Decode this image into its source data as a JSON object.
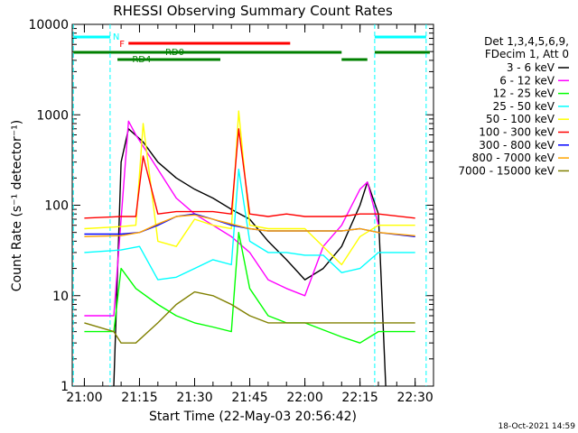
{
  "chart_data": {
    "type": "line",
    "title": "RHESSI Observing Summary Count Rates",
    "xlabel": "Start Time (22-May-03 20:56:42)",
    "ylabel": "Count Rate (s⁻¹ detector⁻¹)",
    "y_scale": "log",
    "ylim": [
      1,
      10000
    ],
    "xlim_minutes_label": "20:56:42 to 22:35",
    "x_ticks": [
      "21:00",
      "21:15",
      "21:30",
      "21:45",
      "22:00",
      "22:15",
      "22:30"
    ],
    "y_ticks": [
      "1",
      "10",
      "100",
      "1000",
      "10000"
    ],
    "legend_header": [
      "Det 1,3,4,5,6,9,",
      "FDecim 1, Att 0"
    ],
    "timestamp": "18-Oct-2021 14:59",
    "flags": [
      {
        "label": "N",
        "color": "#00ffff"
      },
      {
        "label": "F",
        "color": "#ff0000"
      },
      {
        "label": "RD0",
        "color": "#008000"
      },
      {
        "label": "RD4",
        "color": "#008000"
      }
    ],
    "series": [
      {
        "name": "3 - 6 keV",
        "color": "#000000",
        "t": [
          "21:08",
          "21:10",
          "21:12",
          "21:16",
          "21:20",
          "21:25",
          "21:30",
          "21:35",
          "21:40",
          "21:45",
          "21:50",
          "21:55",
          "22:00",
          "22:05",
          "22:10",
          "22:15",
          "22:17",
          "22:20",
          "22:22"
        ],
        "values": [
          1,
          300,
          700,
          500,
          300,
          200,
          150,
          120,
          90,
          70,
          40,
          25,
          15,
          20,
          35,
          100,
          180,
          80,
          1
        ]
      },
      {
        "name": "6 - 12 keV",
        "color": "#ff00ff",
        "t": [
          "21:00",
          "21:08",
          "21:12",
          "21:14",
          "21:20",
          "21:25",
          "21:30",
          "21:35",
          "21:40",
          "21:45",
          "21:50",
          "21:55",
          "22:00",
          "22:05",
          "22:10",
          "22:15",
          "22:17",
          "22:20"
        ],
        "values": [
          6,
          6,
          850,
          600,
          250,
          120,
          80,
          60,
          45,
          30,
          15,
          12,
          10,
          35,
          60,
          150,
          180,
          60
        ]
      },
      {
        "name": "12 - 25 keV",
        "color": "#00ff00",
        "t": [
          "21:00",
          "21:08",
          "21:10",
          "21:14",
          "21:20",
          "21:25",
          "21:30",
          "21:35",
          "21:40",
          "21:42",
          "21:45",
          "21:50",
          "21:55",
          "22:00",
          "22:10",
          "22:15",
          "22:20",
          "22:30"
        ],
        "values": [
          4,
          4,
          20,
          12,
          8,
          6,
          5,
          4.5,
          4,
          50,
          12,
          6,
          5,
          5,
          3.5,
          3,
          4,
          4
        ]
      },
      {
        "name": "25 - 50 keV",
        "color": "#00ffff",
        "t": [
          "21:00",
          "21:10",
          "21:15",
          "21:20",
          "21:25",
          "21:30",
          "21:35",
          "21:40",
          "21:42",
          "21:45",
          "21:50",
          "21:55",
          "22:00",
          "22:05",
          "22:10",
          "22:15",
          "22:20",
          "22:30"
        ],
        "values": [
          30,
          32,
          35,
          15,
          16,
          20,
          25,
          22,
          250,
          40,
          30,
          30,
          28,
          28,
          18,
          20,
          30,
          30
        ]
      },
      {
        "name": "50 - 100 keV",
        "color": "#ffff00",
        "t": [
          "21:00",
          "21:10",
          "21:14",
          "21:16",
          "21:20",
          "21:25",
          "21:30",
          "21:35",
          "21:40",
          "21:42",
          "21:45",
          "21:50",
          "21:55",
          "22:00",
          "22:10",
          "22:15",
          "22:20",
          "22:30"
        ],
        "values": [
          55,
          58,
          60,
          800,
          40,
          35,
          70,
          60,
          55,
          1100,
          60,
          55,
          55,
          55,
          22,
          45,
          60,
          60
        ]
      },
      {
        "name": "100 - 300 keV",
        "color": "#ff0000",
        "t": [
          "21:00",
          "21:10",
          "21:14",
          "21:16",
          "21:20",
          "21:25",
          "21:30",
          "21:35",
          "21:40",
          "21:42",
          "21:45",
          "21:50",
          "21:55",
          "22:00",
          "22:10",
          "22:15",
          "22:20",
          "22:30"
        ],
        "values": [
          72,
          75,
          75,
          350,
          80,
          85,
          85,
          85,
          80,
          700,
          80,
          75,
          80,
          75,
          75,
          80,
          80,
          72
        ]
      },
      {
        "name": "300 - 800 keV",
        "color": "#0000ff",
        "t": [
          "21:00",
          "21:10",
          "21:15",
          "21:20",
          "21:25",
          "21:30",
          "21:35",
          "21:40",
          "21:45",
          "21:50",
          "21:55",
          "22:00",
          "22:10",
          "22:15",
          "22:20",
          "22:30"
        ],
        "values": [
          48,
          48,
          50,
          60,
          75,
          80,
          70,
          60,
          55,
          52,
          52,
          52,
          52,
          55,
          50,
          45
        ]
      },
      {
        "name": "800 - 7000 keV",
        "color": "#ffa500",
        "t": [
          "21:00",
          "21:10",
          "21:15",
          "21:20",
          "21:25",
          "21:30",
          "21:35",
          "21:40",
          "21:45",
          "21:50",
          "21:55",
          "22:00",
          "22:10",
          "22:15",
          "22:20",
          "22:30"
        ],
        "values": [
          45,
          46,
          50,
          62,
          75,
          78,
          70,
          62,
          55,
          52,
          52,
          52,
          52,
          55,
          50,
          46
        ]
      },
      {
        "name": "7000 - 15000 keV",
        "color": "#808000",
        "t": [
          "21:00",
          "21:08",
          "21:10",
          "21:14",
          "21:20",
          "21:25",
          "21:30",
          "21:35",
          "21:40",
          "21:45",
          "21:50",
          "21:55",
          "22:00",
          "22:10",
          "22:15",
          "22:20",
          "22:25",
          "22:30"
        ],
        "values": [
          5,
          4,
          3,
          3,
          5,
          8,
          11,
          10,
          8,
          6,
          5,
          5,
          5,
          5,
          5,
          5,
          5,
          5
        ]
      }
    ]
  }
}
